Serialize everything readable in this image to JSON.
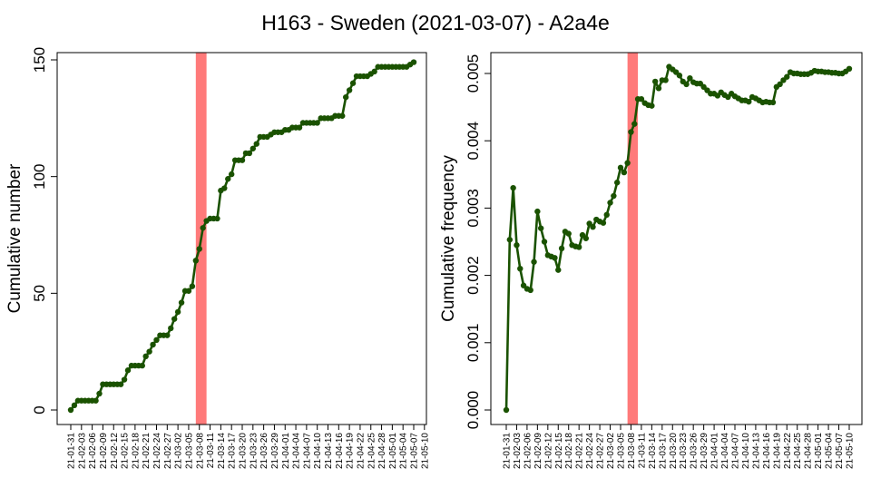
{
  "title": "H163 - Sweden (2021-03-07) - A2a4e",
  "colors": {
    "line": "#1a5200",
    "marker": "#1a5200",
    "highlight": "#ff7a7a",
    "axis": "#000000"
  },
  "chart_data": [
    {
      "type": "line",
      "ylabel": "Cumulative number",
      "xlabel": "",
      "ylim": [
        0,
        150
      ],
      "yticks": [
        0,
        50,
        100,
        150
      ],
      "highlight_range": [
        "2021-03-07",
        "2021-03-10"
      ],
      "x_tick_labels": [
        "21-01-31",
        "21-02-03",
        "21-02-06",
        "21-02-09",
        "21-02-12",
        "21-02-15",
        "21-02-18",
        "21-02-21",
        "21-02-24",
        "21-02-27",
        "21-03-02",
        "21-03-05",
        "21-03-08",
        "21-03-11",
        "21-03-14",
        "21-03-17",
        "21-03-20",
        "21-03-23",
        "21-03-26",
        "21-03-29",
        "21-04-01",
        "21-04-04",
        "21-04-07",
        "21-04-10",
        "21-04-13",
        "21-04-16",
        "21-04-19",
        "21-04-22",
        "21-04-25",
        "21-04-28",
        "21-05-01",
        "21-05-04",
        "21-05-07",
        "21-05-10"
      ],
      "series": [
        {
          "x_start": "2021-01-31",
          "values": [
            0,
            2,
            4,
            4,
            4,
            4,
            4,
            4,
            7,
            11,
            11,
            11,
            11,
            11,
            11,
            13,
            17,
            19,
            19,
            19,
            19,
            23,
            25,
            28,
            30,
            32,
            32,
            32,
            35,
            39,
            42,
            46,
            51,
            51,
            53,
            64,
            69,
            78,
            81,
            82,
            82,
            82,
            94,
            95,
            99,
            101,
            107,
            107,
            107,
            110,
            110,
            112,
            114,
            117,
            117,
            117,
            118,
            119,
            119,
            119,
            120,
            120,
            121,
            121,
            121,
            123,
            123,
            123,
            123,
            123,
            125,
            125,
            125,
            125,
            126,
            126,
            126,
            134,
            137,
            140,
            143,
            143,
            143,
            143,
            144,
            145,
            147,
            147,
            147,
            147,
            147,
            147,
            147,
            147,
            147,
            148,
            149
          ]
        }
      ]
    },
    {
      "type": "line",
      "ylabel": "Cumulative frequency",
      "xlabel": "",
      "ylim": [
        0,
        0.005
      ],
      "yticks": [
        0,
        0.001,
        0.002,
        0.003,
        0.004,
        0.005
      ],
      "ytick_labels": [
        "0.000",
        "0.001",
        "0.002",
        "0.003",
        "0.004",
        "0.005"
      ],
      "highlight_range": [
        "2021-03-07",
        "2021-03-10"
      ],
      "x_tick_labels": [
        "21-01-31",
        "21-02-03",
        "21-02-06",
        "21-02-09",
        "21-02-12",
        "21-02-15",
        "21-02-18",
        "21-02-21",
        "21-02-24",
        "21-02-27",
        "21-03-02",
        "21-03-05",
        "21-03-08",
        "21-03-11",
        "21-03-14",
        "21-03-17",
        "21-03-20",
        "21-03-23",
        "21-03-26",
        "21-03-29",
        "21-04-01",
        "21-04-04",
        "21-04-07",
        "21-04-10",
        "21-04-13",
        "21-04-16",
        "21-04-19",
        "21-04-22",
        "21-04-25",
        "21-04-28",
        "21-05-01",
        "21-05-04",
        "21-05-07",
        "21-05-10"
      ],
      "series": [
        {
          "x_start": "2021-01-31",
          "values": [
            0,
            0.00253,
            0.0033,
            0.00245,
            0.0021,
            0.00185,
            0.0018,
            0.00178,
            0.0022,
            0.00295,
            0.0027,
            0.0025,
            0.0023,
            0.00228,
            0.00226,
            0.00208,
            0.0024,
            0.00265,
            0.00262,
            0.00245,
            0.00243,
            0.00242,
            0.0026,
            0.00255,
            0.00277,
            0.00272,
            0.00283,
            0.0028,
            0.00278,
            0.0029,
            0.00308,
            0.00318,
            0.00338,
            0.0036,
            0.00353,
            0.00367,
            0.00413,
            0.00425,
            0.00462,
            0.00462,
            0.00456,
            0.00453,
            0.00452,
            0.00488,
            0.00478,
            0.0049,
            0.0049,
            0.0051,
            0.00506,
            0.00502,
            0.00497,
            0.00488,
            0.00484,
            0.00493,
            0.00487,
            0.00485,
            0.00485,
            0.0048,
            0.00475,
            0.0047,
            0.0047,
            0.00467,
            0.00472,
            0.00468,
            0.00465,
            0.0047,
            0.00466,
            0.00463,
            0.0046,
            0.0046,
            0.00458,
            0.00465,
            0.00463,
            0.0046,
            0.00457,
            0.00458,
            0.00457,
            0.00457,
            0.0048,
            0.00484,
            0.0049,
            0.00495,
            0.00502,
            0.005,
            0.005,
            0.00499,
            0.00499,
            0.00499,
            0.00501,
            0.00504,
            0.00503,
            0.00503,
            0.00502,
            0.00502,
            0.00501,
            0.00501,
            0.005,
            0.005,
            0.00503,
            0.00507
          ]
        }
      ]
    }
  ]
}
